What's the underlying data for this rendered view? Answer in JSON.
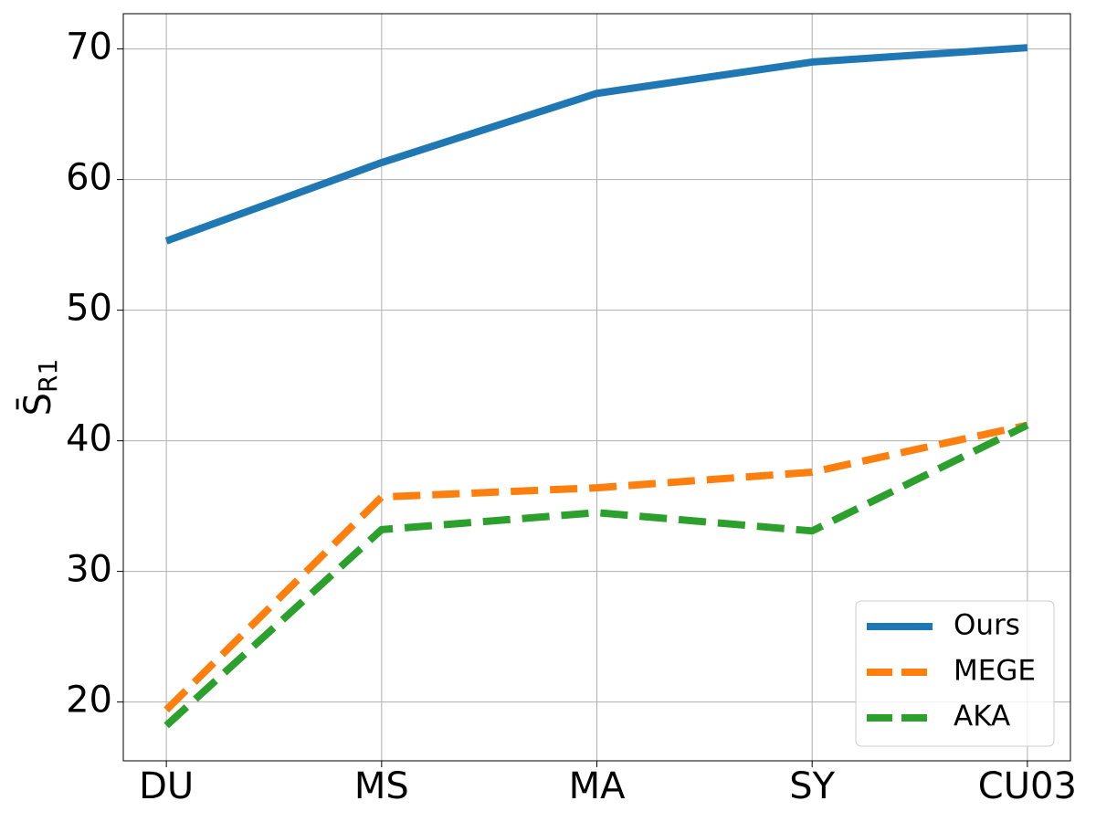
{
  "chart_data": {
    "type": "line",
    "ylabel": [
      "S̄",
      "R1"
    ],
    "categories": [
      "DU",
      "MS",
      "MA",
      "SY",
      "CU03"
    ],
    "series": [
      {
        "name": "Ours",
        "color": "#1f77b4",
        "linestyle": "solid",
        "values": [
          55.3,
          61.3,
          66.6,
          69.0,
          70.1
        ]
      },
      {
        "name": "MEGE",
        "color": "#ff7f0e",
        "linestyle": "dashed",
        "values": [
          19.4,
          35.7,
          36.4,
          37.6,
          41.2
        ]
      },
      {
        "name": "AKA",
        "color": "#2ca02c",
        "linestyle": "dashed",
        "values": [
          18.2,
          33.2,
          34.5,
          33.1,
          41.2
        ]
      }
    ],
    "ylim": [
      15.5,
      72.7
    ],
    "yticks": [
      20,
      30,
      40,
      50,
      60,
      70
    ],
    "grid": true,
    "legend": "lower right"
  }
}
